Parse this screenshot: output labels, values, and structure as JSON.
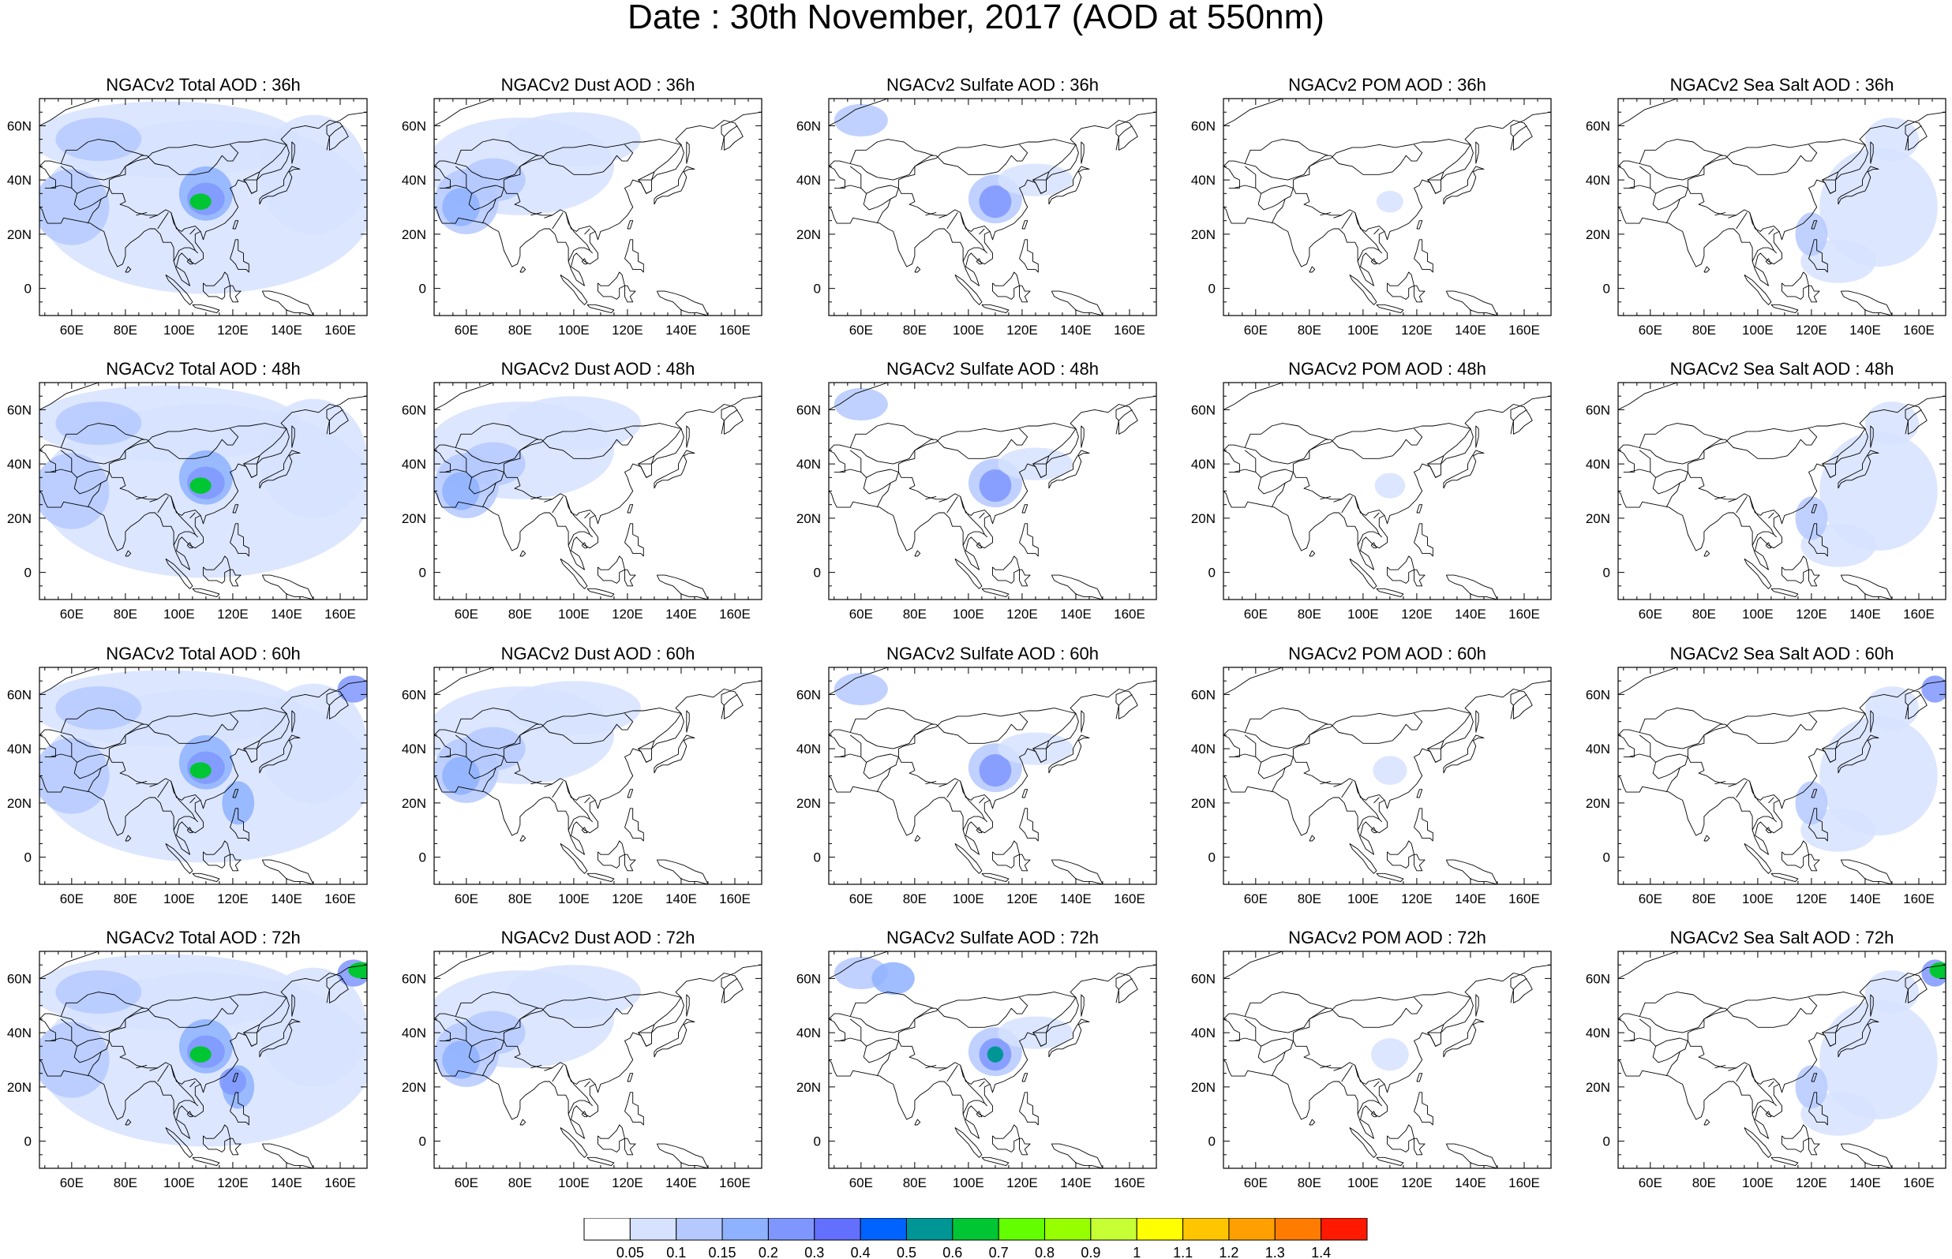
{
  "title": "Date : 30th November, 2017 (AOD at 550nm)",
  "axes": {
    "x_ticks": [
      "60E",
      "80E",
      "100E",
      "120E",
      "140E",
      "160E"
    ],
    "y_ticks": [
      "60N",
      "40N",
      "20N",
      "0"
    ]
  },
  "colorbar": {
    "colors": [
      "#ffffff",
      "#d6e2ff",
      "#b5c9ff",
      "#8eb2ff",
      "#7f96ff",
      "#6370ff",
      "#0063ff",
      "#009696",
      "#00c633",
      "#63ff00",
      "#96ff00",
      "#c6ff33",
      "#ffff00",
      "#ffc600",
      "#ffa000",
      "#ff7c00",
      "#ff1900"
    ],
    "labels": [
      "0.05",
      "0.1",
      "0.15",
      "0.2",
      "0.3",
      "0.4",
      "0.5",
      "0.6",
      "0.7",
      "0.8",
      "0.9",
      "1",
      "1.1",
      "1.2",
      "1.3",
      "1.4"
    ]
  },
  "panels": [
    {
      "title": "NGACv2 Total AOD : 36h",
      "kind": "total",
      "forecast_hour": 36
    },
    {
      "title": "NGACv2 Dust AOD : 36h",
      "kind": "dust",
      "forecast_hour": 36
    },
    {
      "title": "NGACv2 Sulfate AOD : 36h",
      "kind": "sulfate",
      "forecast_hour": 36
    },
    {
      "title": "NGACv2 POM AOD : 36h",
      "kind": "pom",
      "forecast_hour": 36
    },
    {
      "title": "NGACv2 Sea Salt AOD : 36h",
      "kind": "seasalt",
      "forecast_hour": 36
    },
    {
      "title": "NGACv2 Total AOD : 48h",
      "kind": "total",
      "forecast_hour": 48
    },
    {
      "title": "NGACv2 Dust AOD : 48h",
      "kind": "dust",
      "forecast_hour": 48
    },
    {
      "title": "NGACv2 Sulfate AOD : 48h",
      "kind": "sulfate",
      "forecast_hour": 48
    },
    {
      "title": "NGACv2 POM AOD : 48h",
      "kind": "pom",
      "forecast_hour": 48
    },
    {
      "title": "NGACv2 Sea Salt AOD : 48h",
      "kind": "seasalt",
      "forecast_hour": 48
    },
    {
      "title": "NGACv2 Total AOD : 60h",
      "kind": "total",
      "forecast_hour": 60
    },
    {
      "title": "NGACv2 Dust AOD : 60h",
      "kind": "dust",
      "forecast_hour": 60
    },
    {
      "title": "NGACv2 Sulfate AOD : 60h",
      "kind": "sulfate",
      "forecast_hour": 60
    },
    {
      "title": "NGACv2 POM AOD : 60h",
      "kind": "pom",
      "forecast_hour": 60
    },
    {
      "title": "NGACv2 Sea Salt AOD : 60h",
      "kind": "seasalt",
      "forecast_hour": 60
    },
    {
      "title": "NGACv2 Total AOD : 72h",
      "kind": "total",
      "forecast_hour": 72
    },
    {
      "title": "NGACv2 Dust AOD : 72h",
      "kind": "dust",
      "forecast_hour": 72
    },
    {
      "title": "NGACv2 Sulfate AOD : 72h",
      "kind": "sulfate",
      "forecast_hour": 72
    },
    {
      "title": "NGACv2 POM AOD : 72h",
      "kind": "pom",
      "forecast_hour": 72
    },
    {
      "title": "NGACv2 Sea Salt  AOD : 72h",
      "kind": "seasalt",
      "forecast_hour": 72
    }
  ]
}
